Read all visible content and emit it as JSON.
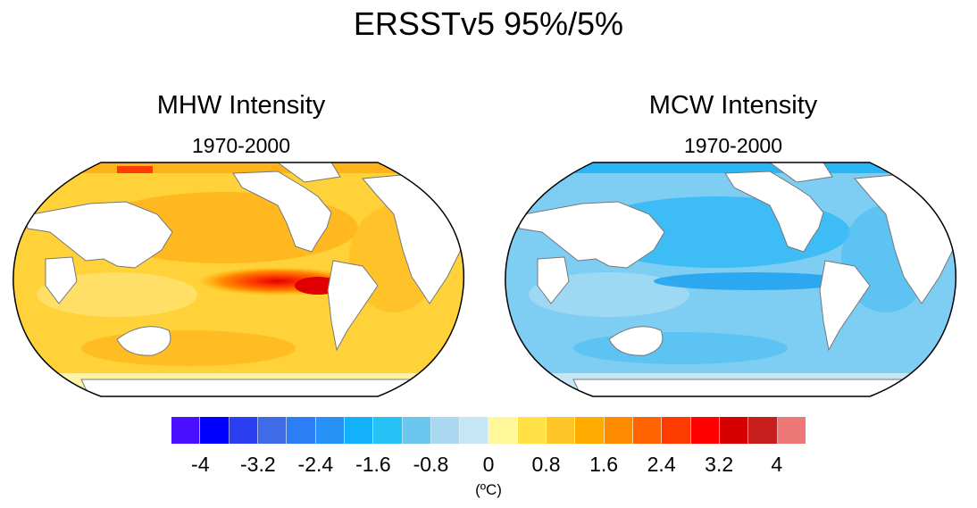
{
  "title": "ERSSTv5 95%/5%",
  "panels": [
    {
      "title": "MHW Intensity",
      "period": "1970-2000",
      "palette": "warm"
    },
    {
      "title": "MCW Intensity",
      "period": "1970-2000",
      "palette": "cool"
    }
  ],
  "colorbar": {
    "colors": [
      "#4b0fff",
      "#0000ff",
      "#2a40f0",
      "#3f6be8",
      "#2b7ef6",
      "#2891f5",
      "#12b1f9",
      "#27c2f5",
      "#6bc6f0",
      "#a9d8f0",
      "#c6e6f6",
      "#fff799",
      "#ffe145",
      "#ffc629",
      "#ffab00",
      "#ff8b00",
      "#ff6400",
      "#ff3c00",
      "#ff0000",
      "#d70000",
      "#c81e1e",
      "#ee7878"
    ],
    "tick_labels": [
      "-4",
      "-3.2",
      "-2.4",
      "-1.6",
      "-0.8",
      "0",
      "0.8",
      "1.6",
      "2.4",
      "3.2",
      "4"
    ],
    "unit": "(ºC)"
  }
}
